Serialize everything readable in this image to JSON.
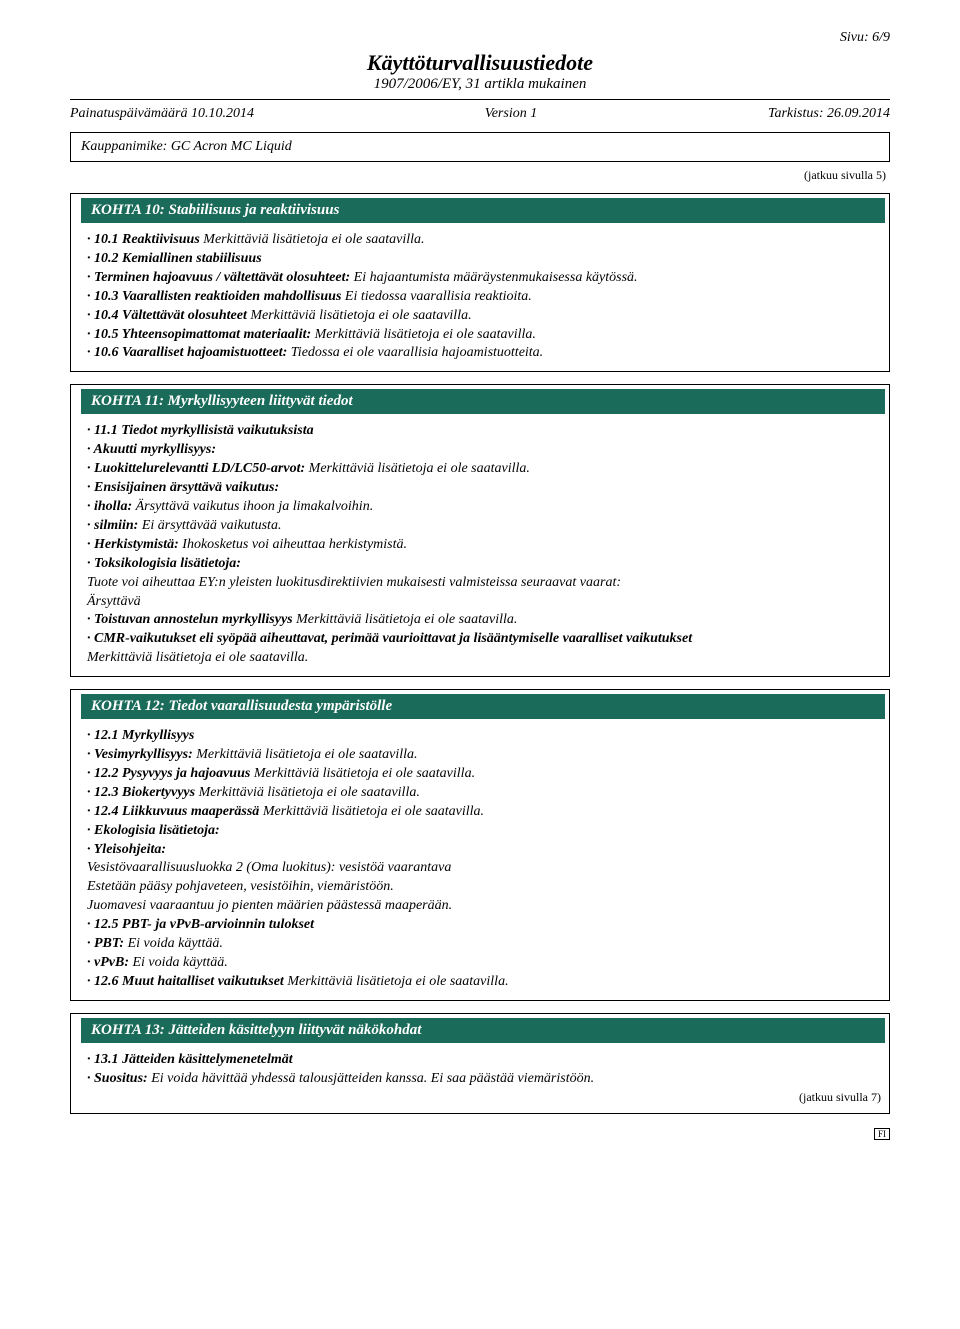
{
  "page_indicator": "Sivu: 6/9",
  "doc_title": "Käyttöturvallisuustiedote",
  "doc_subtitle": "1907/2006/EY, 31 artikla mukainen",
  "meta": {
    "print_date": "Painatuspäivämäärä 10.10.2014",
    "version": "Version 1",
    "revision": "Tarkistus: 26.09.2014"
  },
  "product_line": "Kauppanimike: GC Acron MC Liquid",
  "continued_from": "(jatkuu sivulla 5)",
  "continued_to": "(jatkuu sivulla 7)",
  "footer_code": "FI",
  "colors": {
    "section_header_bg": "#1b6b5a",
    "section_header_fg": "#ffffff"
  },
  "sections": [
    {
      "title": "KOHTA 10: Stabiilisuus ja reaktiivisuus",
      "lines": [
        {
          "label": "· 10.1 Reaktiivisuus",
          "text": " Merkittäviä lisätietoja ei ole saatavilla."
        },
        {
          "label": "· 10.2 Kemiallinen stabiilisuus",
          "text": ""
        },
        {
          "label": "· Terminen hajoavuus / vältettävät olosuhteet:",
          "text": " Ei hajaantumista määräystenmukaisessa käytössä."
        },
        {
          "label": "· 10.3 Vaarallisten reaktioiden mahdollisuus",
          "text": " Ei tiedossa vaarallisia reaktioita."
        },
        {
          "label": "· 10.4 Vältettävät olosuhteet",
          "text": " Merkittäviä lisätietoja ei ole saatavilla."
        },
        {
          "label": "· 10.5 Yhteensopimattomat materiaalit:",
          "text": " Merkittäviä lisätietoja ei ole saatavilla."
        },
        {
          "label": "· 10.6 Vaaralliset hajoamistuotteet:",
          "text": " Tiedossa ei ole vaarallisia hajoamistuotteita."
        }
      ]
    },
    {
      "title": "KOHTA 11: Myrkyllisyyteen liittyvät tiedot",
      "lines": [
        {
          "label": "· 11.1 Tiedot myrkyllisistä vaikutuksista",
          "text": ""
        },
        {
          "label": "· Akuutti myrkyllisyys:",
          "text": ""
        },
        {
          "label": "· Luokittelurelevantti LD/LC50-arvot:",
          "text": " Merkittäviä lisätietoja ei ole saatavilla."
        },
        {
          "label": "· Ensisijainen ärsyttävä vaikutus:",
          "text": ""
        },
        {
          "label": "· iholla:",
          "text": " Ärsyttävä vaikutus ihoon ja limakalvoihin."
        },
        {
          "label": "· silmiin:",
          "text": " Ei ärsyttävää vaikutusta."
        },
        {
          "label": "· Herkistymistä:",
          "text": " Ihokosketus voi aiheuttaa herkistymistä."
        },
        {
          "label": "· Toksikologisia lisätietoja:",
          "text": ""
        },
        {
          "label": "",
          "text": "Tuote voi aiheuttaa EY:n yleisten luokitusdirektiivien mukaisesti valmisteissa seuraavat vaarat:"
        },
        {
          "label": "",
          "text": "Ärsyttävä"
        },
        {
          "label": "· Toistuvan annostelun myrkyllisyys",
          "text": " Merkittäviä lisätietoja ei ole saatavilla."
        },
        {
          "label": "· CMR-vaikutukset eli syöpää aiheuttavat, perimää vaurioittavat ja lisääntymiselle vaaralliset vaikutukset",
          "text": ""
        },
        {
          "label": "",
          "text": "Merkittäviä lisätietoja ei ole saatavilla."
        }
      ]
    },
    {
      "title": "KOHTA 12: Tiedot vaarallisuudesta ympäristölle",
      "lines": [
        {
          "label": "· 12.1 Myrkyllisyys",
          "text": ""
        },
        {
          "label": "· Vesimyrkyllisyys:",
          "text": " Merkittäviä lisätietoja ei ole saatavilla."
        },
        {
          "label": "· 12.2 Pysyvyys ja hajoavuus",
          "text": " Merkittäviä lisätietoja ei ole saatavilla."
        },
        {
          "label": "· 12.3 Biokertyvyys",
          "text": " Merkittäviä lisätietoja ei ole saatavilla."
        },
        {
          "label": "· 12.4 Liikkuvuus maaperässä",
          "text": " Merkittäviä lisätietoja ei ole saatavilla."
        },
        {
          "label": "· Ekologisia lisätietoja:",
          "text": ""
        },
        {
          "label": "· Yleisohjeita:",
          "text": ""
        },
        {
          "label": "",
          "text": "Vesistövaarallisuusluokka 2 (Oma luokitus): vesistöä vaarantava"
        },
        {
          "label": "",
          "text": "Estetään pääsy pohjaveteen, vesistöihin, viemäristöön."
        },
        {
          "label": "",
          "text": "Juomavesi vaaraantuu jo pienten määrien päästessä maaperään."
        },
        {
          "label": "· 12.5 PBT- ja vPvB-arvioinnin tulokset",
          "text": ""
        },
        {
          "label": "· PBT:",
          "text": " Ei voida käyttää."
        },
        {
          "label": "· vPvB:",
          "text": " Ei voida käyttää."
        },
        {
          "label": "· 12.6 Muut haitalliset vaikutukset",
          "text": " Merkittäviä lisätietoja ei ole saatavilla."
        }
      ]
    },
    {
      "title": "KOHTA 13: Jätteiden käsittelyyn liittyvät näkökohdat",
      "lines": [
        {
          "label": "· 13.1 Jätteiden käsittelymenetelmät",
          "text": ""
        },
        {
          "label": "· Suositus:",
          "text": " Ei voida hävittää yhdessä talousjätteiden kanssa. Ei saa päästää viemäristöön."
        }
      ],
      "show_continued": true
    }
  ]
}
